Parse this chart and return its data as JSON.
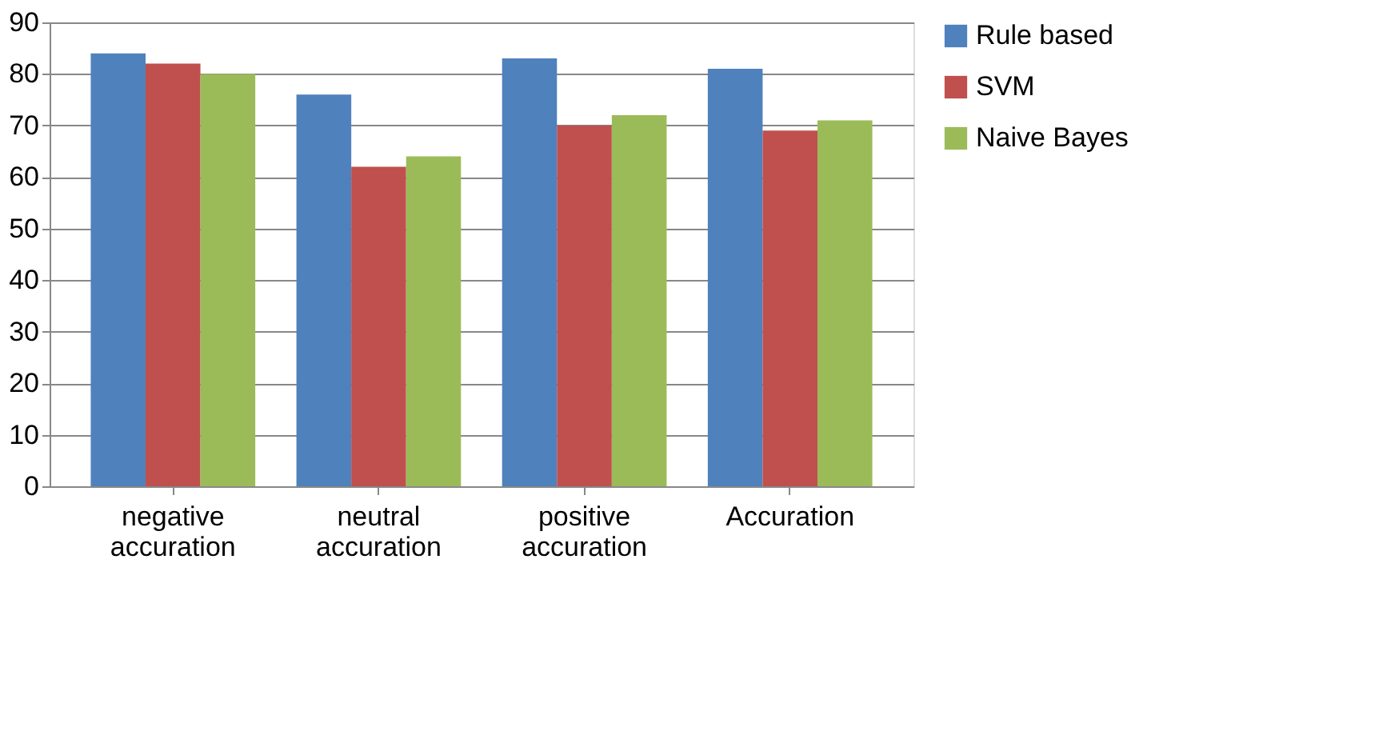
{
  "chart_data": {
    "type": "bar",
    "categories": [
      "negative accuration",
      "neutral accuration",
      "positive accuration",
      "Accuration"
    ],
    "series": [
      {
        "name": "Rule based",
        "color": "#4f81bd",
        "values": [
          84,
          76,
          83,
          81
        ]
      },
      {
        "name": "SVM",
        "color": "#c0504d",
        "values": [
          82,
          62,
          70,
          69
        ]
      },
      {
        "name": "Naive Bayes",
        "color": "#9bbb59",
        "values": [
          80,
          64,
          72,
          71
        ]
      }
    ],
    "ylim": [
      0,
      90
    ],
    "yticks": [
      0,
      10,
      20,
      30,
      40,
      50,
      60,
      70,
      80,
      90
    ],
    "grid": "y",
    "legend": "right"
  }
}
